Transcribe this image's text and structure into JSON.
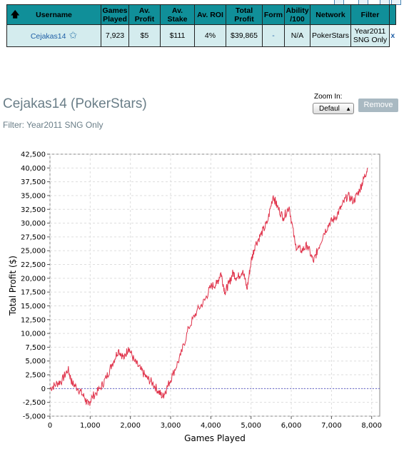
{
  "table": {
    "headers": [
      "Username",
      "Games\nPlayed",
      "Av.\nProfit",
      "Av.\nStake",
      "Av. ROI",
      "Total\nProfit",
      "Form",
      "Ability\n/100",
      "Network",
      "Filter"
    ],
    "row": {
      "username": "Cejakas14",
      "games_played": "7,923",
      "av_profit": "$5",
      "av_stake": "$111",
      "av_roi": "4%",
      "total_profit": "$39,865",
      "form": "-",
      "ability": "N/A",
      "network": "PokerStars",
      "filter": "Year2011 SNG Only",
      "remove_link": "x"
    }
  },
  "profile": {
    "title": "Cejakas14 (PokerStars)",
    "filter_text": "Filter: Year2011 SNG Only"
  },
  "zoom": {
    "label": "Zoom In:",
    "selected": "Defaul",
    "remove_label": "Remove"
  },
  "colors": {
    "header_bg": "#108f99",
    "row_bg": "#d4ecee",
    "line": "#e0344c"
  },
  "chart_data": {
    "type": "line",
    "title": "",
    "xlabel": "Games Played",
    "ylabel": "Total Profit ($)",
    "xlim": [
      0,
      8200
    ],
    "ylim": [
      -5000,
      42500
    ],
    "x_ticks": [
      0,
      1000,
      2000,
      3000,
      4000,
      5000,
      6000,
      7000,
      8000
    ],
    "x_tick_labels": [
      "0",
      "1,000",
      "2,000",
      "3,000",
      "4,000",
      "5,000",
      "6,000",
      "7,000",
      "8,000"
    ],
    "y_ticks": [
      -5000,
      -2500,
      0,
      2500,
      5000,
      7500,
      10000,
      12500,
      15000,
      17500,
      20000,
      22500,
      25000,
      27500,
      30000,
      32500,
      35000,
      37500,
      40000,
      42500
    ],
    "y_tick_labels": [
      "-5,000",
      "-2,500",
      "0",
      "2,500",
      "5,000",
      "7,500",
      "10,000",
      "12,500",
      "15,000",
      "17,500",
      "20,000",
      "22,500",
      "25,000",
      "27,500",
      "30,000",
      "32,500",
      "35,000",
      "37,500",
      "40,000",
      "42,500"
    ],
    "grid": true,
    "series": [
      {
        "x": [
          0,
          150,
          300,
          450,
          550,
          700,
          850,
          950,
          1050,
          1250,
          1400,
          1550,
          1700,
          1850,
          1950,
          2100,
          2250,
          2400,
          2550,
          2700,
          2800,
          2900,
          3050,
          3250,
          3450,
          3650,
          3850,
          4000,
          4150,
          4250,
          4350,
          4450,
          4550,
          4650,
          4800,
          4900,
          5000,
          5100,
          5250,
          5400,
          5550,
          5650,
          5800,
          5950,
          6100,
          6250,
          6400,
          6550,
          6650,
          6800,
          6950,
          7100,
          7250,
          7400,
          7550,
          7700,
          7800,
          7900
        ],
        "y": [
          0,
          800,
          1500,
          3500,
          1000,
          0,
          -1500,
          -3000,
          -1500,
          0,
          2000,
          4500,
          7000,
          5500,
          7500,
          5000,
          3500,
          2000,
          1000,
          -500,
          -1500,
          0,
          2500,
          6000,
          11000,
          14000,
          16000,
          18500,
          19000,
          21000,
          17500,
          19000,
          21000,
          20000,
          21500,
          18000,
          23000,
          26000,
          28000,
          30000,
          35000,
          33000,
          31000,
          33000,
          26000,
          25000,
          26000,
          23000,
          25000,
          28000,
          30000,
          31000,
          33000,
          35000,
          34000,
          36000,
          38000,
          40000
        ]
      }
    ],
    "reference_line_y": 0
  }
}
